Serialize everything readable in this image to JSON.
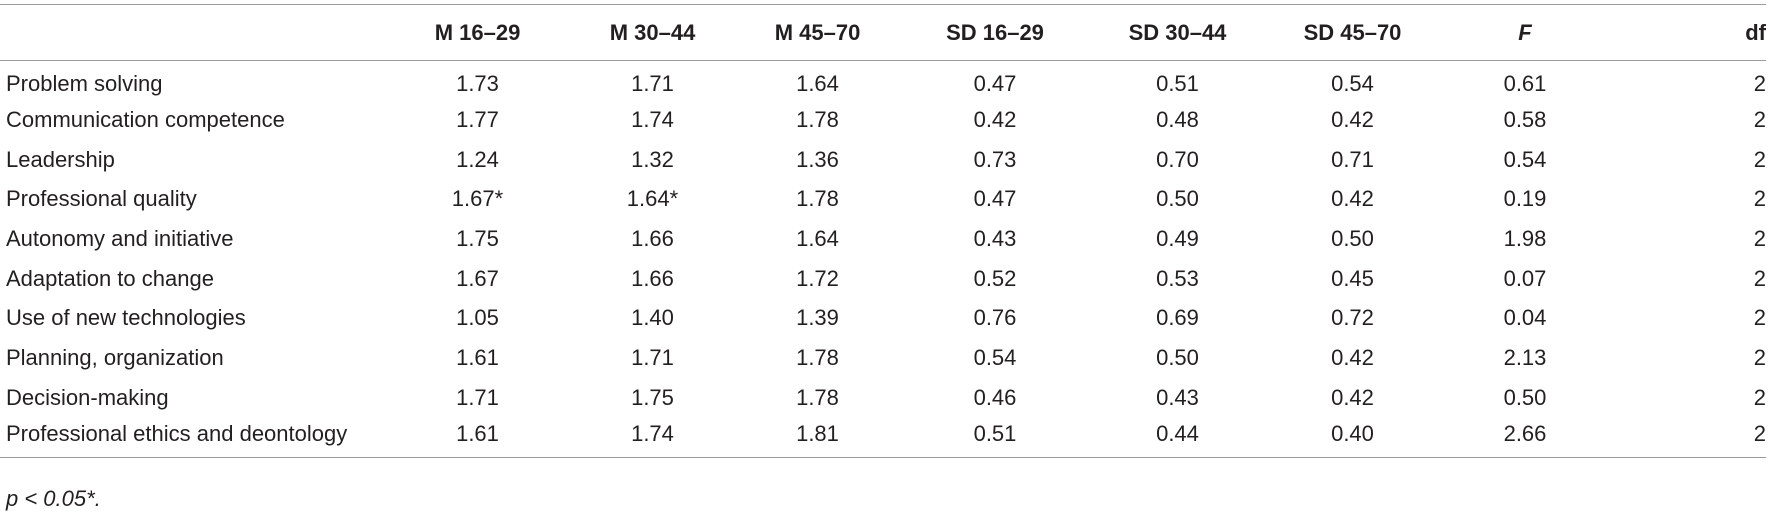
{
  "table": {
    "headers": [
      "",
      "M 16–29",
      "M 30–44",
      "M 45–70",
      "SD 16–29",
      "SD 30–44",
      "SD 45–70",
      "F",
      "df"
    ],
    "rows": [
      {
        "label": "Problem solving",
        "values": [
          "1.73",
          "1.71",
          "1.64",
          "0.47",
          "0.51",
          "0.54",
          "0.61",
          "2"
        ]
      },
      {
        "label": "Communication competence",
        "values": [
          "1.77",
          "1.74",
          "1.78",
          "0.42",
          "0.48",
          "0.42",
          "0.58",
          "2"
        ]
      },
      {
        "label": "Leadership",
        "values": [
          "1.24",
          "1.32",
          "1.36",
          "0.73",
          "0.70",
          "0.71",
          "0.54",
          "2"
        ]
      },
      {
        "label": "Professional quality",
        "values": [
          "1.67*",
          "1.64*",
          "1.78",
          "0.47",
          "0.50",
          "0.42",
          "0.19",
          "2"
        ]
      },
      {
        "label": "Autonomy and initiative",
        "values": [
          "1.75",
          "1.66",
          "1.64",
          "0.43",
          "0.49",
          "0.50",
          "1.98",
          "2"
        ]
      },
      {
        "label": "Adaptation to change",
        "values": [
          "1.67",
          "1.66",
          "1.72",
          "0.52",
          "0.53",
          "0.45",
          "0.07",
          "2"
        ]
      },
      {
        "label": "Use of new technologies",
        "values": [
          "1.05",
          "1.40",
          "1.39",
          "0.76",
          "0.69",
          "0.72",
          "0.04",
          "2"
        ]
      },
      {
        "label": "Planning, organization",
        "values": [
          "1.61",
          "1.71",
          "1.78",
          "0.54",
          "0.50",
          "0.42",
          "2.13",
          "2"
        ]
      },
      {
        "label": "Decision-making",
        "values": [
          "1.71",
          "1.75",
          "1.78",
          "0.46",
          "0.43",
          "0.42",
          "0.50",
          "2"
        ]
      },
      {
        "label": "Professional ethics and deontology",
        "values": [
          "1.61",
          "1.74",
          "1.81",
          "0.51",
          "0.44",
          "0.40",
          "2.66",
          "2"
        ]
      }
    ]
  },
  "footnote": "p < 0.05*."
}
